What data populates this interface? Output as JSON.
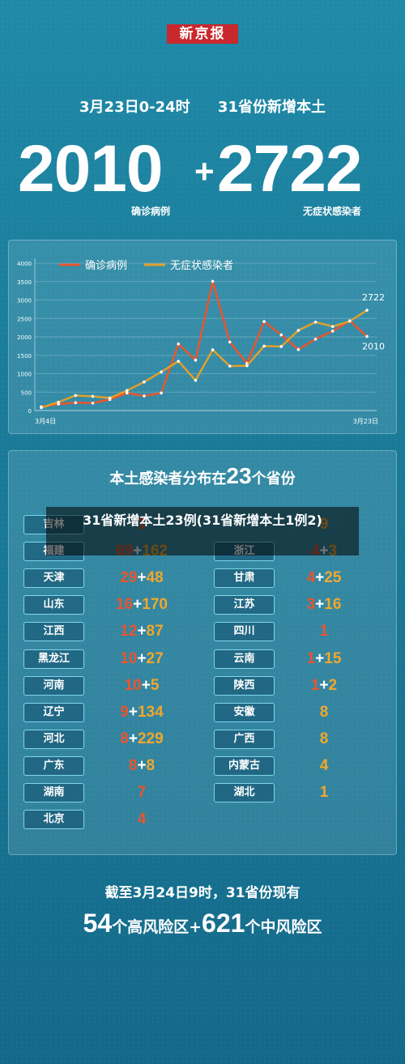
{
  "logo": "新京报",
  "header": {
    "date_text": "3月23日0-24时",
    "scope_text": "31省份新增本土"
  },
  "totals": {
    "confirmed": "2010",
    "plus": "+",
    "asymptomatic": "2722",
    "confirmed_label": "确诊病例",
    "asymptomatic_label": "无症状感染者"
  },
  "chart_data": {
    "type": "line",
    "title": "",
    "xlabel": "",
    "ylabel": "",
    "ylim": [
      0,
      4000
    ],
    "yticks": [
      "0",
      "500",
      "1000",
      "1500",
      "2000",
      "2500",
      "3000",
      "3500",
      "4000"
    ],
    "x_labels": [
      "3月4日",
      "3月23日"
    ],
    "legend": "top-left",
    "grid": true,
    "series": [
      {
        "name": "确诊病例",
        "color": "#e8552f",
        "values": [
          102,
          175,
          214,
          203,
          300,
          476,
          397,
          476,
          1807,
          1369,
          3507,
          1860,
          1280,
          2416,
          2054,
          1656,
          1937,
          2157,
          2436,
          2010
        ]
      },
      {
        "name": "无症状感染者",
        "color": "#e0a02b",
        "values": [
          79,
          228,
          409,
          385,
          340,
          542,
          776,
          1048,
          1337,
          821,
          1647,
          1206,
          1216,
          1750,
          1738,
          2175,
          2400,
          2280,
          2425,
          2722
        ]
      }
    ],
    "end_labels": [
      "2722",
      "2010"
    ]
  },
  "distribution": {
    "title_pre": "本土感染者分布在",
    "title_num": "23",
    "title_post": "个省份",
    "left": [
      {
        "province": "吉林",
        "confirmed": "1",
        "plus": "",
        "asymptomatic": ""
      },
      {
        "province": "福建",
        "confirmed": "69",
        "plus": "+",
        "asymptomatic": "162"
      },
      {
        "province": "天津",
        "confirmed": "29",
        "plus": "+",
        "asymptomatic": "48"
      },
      {
        "province": "山东",
        "confirmed": "16",
        "plus": "+",
        "asymptomatic": "170"
      },
      {
        "province": "江西",
        "confirmed": "12",
        "plus": "+",
        "asymptomatic": "87"
      },
      {
        "province": "黑龙江",
        "confirmed": "10",
        "plus": "+",
        "asymptomatic": "27"
      },
      {
        "province": "河南",
        "confirmed": "10",
        "plus": "+",
        "asymptomatic": "5"
      },
      {
        "province": "辽宁",
        "confirmed": "9",
        "plus": "+",
        "asymptomatic": "134"
      },
      {
        "province": "河北",
        "confirmed": "8",
        "plus": "+",
        "asymptomatic": "229"
      },
      {
        "province": "广东",
        "confirmed": "8",
        "plus": "+",
        "asymptomatic": "8"
      },
      {
        "province": "湖南",
        "confirmed": "7",
        "plus": "",
        "asymptomatic": ""
      },
      {
        "province": "北京",
        "confirmed": "4",
        "plus": "",
        "asymptomatic": ""
      }
    ],
    "right": [
      {
        "province": "",
        "confirmed": "",
        "plus": "",
        "asymptomatic": "9"
      },
      {
        "province": "浙江",
        "confirmed": "4",
        "plus": "+",
        "asymptomatic": "3"
      },
      {
        "province": "甘肃",
        "confirmed": "4",
        "plus": "+",
        "asymptomatic": "25"
      },
      {
        "province": "江苏",
        "confirmed": "3",
        "plus": "+",
        "asymptomatic": "16"
      },
      {
        "province": "四川",
        "confirmed": "1",
        "plus": "",
        "asymptomatic": ""
      },
      {
        "province": "云南",
        "confirmed": "1",
        "plus": "+",
        "asymptomatic": "15"
      },
      {
        "province": "陕西",
        "confirmed": "1",
        "plus": "+",
        "asymptomatic": "2"
      },
      {
        "province": "安徽",
        "confirmed": "",
        "plus": "",
        "asymptomatic": "8"
      },
      {
        "province": "广西",
        "confirmed": "",
        "plus": "",
        "asymptomatic": "8"
      },
      {
        "province": "内蒙古",
        "confirmed": "",
        "plus": "",
        "asymptomatic": "4"
      },
      {
        "province": "湖北",
        "confirmed": "",
        "plus": "",
        "asymptomatic": "1"
      }
    ]
  },
  "overlay": {
    "text": "31省新增本土23例(31省新增本土1例2)"
  },
  "footer": {
    "line1": "截至3月24日9时，31省份现有",
    "high_num": "54",
    "high_text": "个高风险区+",
    "mid_num": "621",
    "mid_text": "个中风险区"
  }
}
